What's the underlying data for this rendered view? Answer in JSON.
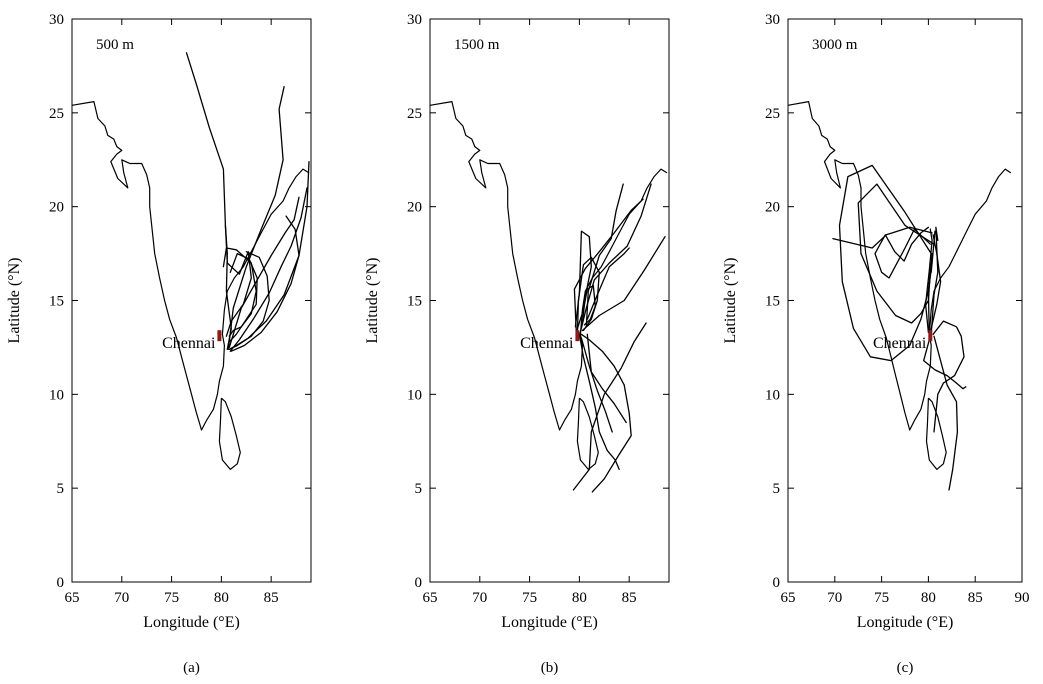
{
  "chart_data": [
    {
      "type": "line",
      "panel": "(a)",
      "annotation": "500 m",
      "xlabel": "Longitude (°E)",
      "ylabel": "Latitude (°N)",
      "xlim": [
        65,
        89
      ],
      "ylim": [
        0,
        30
      ],
      "xticks": [
        65,
        70,
        75,
        80,
        85
      ],
      "yticks": [
        0,
        5,
        10,
        15,
        20,
        25,
        30
      ],
      "site": {
        "name": "Chennai",
        "lon": 79.8,
        "lat": 13.1,
        "color": "#8b1a1a"
      },
      "series": [
        {
          "x": [
            76.5,
            77.5,
            78.8,
            80.2,
            80.4,
            80.6,
            80.5,
            81.0,
            80.6
          ],
          "y": [
            28.2,
            26.5,
            24.2,
            22.0,
            19.0,
            17.5,
            15.5,
            13.5,
            12.4
          ]
        },
        {
          "x": [
            86.3,
            85.8,
            86.2,
            85.4,
            84.0,
            82.5,
            81.2,
            80.7
          ],
          "y": [
            26.4,
            25.2,
            22.5,
            20.6,
            18.8,
            16.8,
            14.6,
            12.4
          ]
        },
        {
          "x": [
            87.8,
            87.3,
            86.4,
            85.0,
            83.5,
            82.0,
            81.2,
            80.8
          ],
          "y": [
            20.5,
            19.3,
            18.6,
            17.4,
            16.0,
            14.6,
            13.2,
            12.5
          ]
        },
        {
          "x": [
            88.6,
            88.0,
            87.0,
            86.0,
            84.8,
            83.2,
            81.8,
            80.9
          ],
          "y": [
            21.0,
            19.4,
            17.9,
            16.8,
            15.4,
            14.0,
            12.9,
            12.3
          ]
        },
        {
          "x": [
            88.8,
            88.6,
            87.8,
            86.3,
            84.5,
            82.7,
            81.5,
            80.8
          ],
          "y": [
            22.4,
            20.0,
            17.4,
            15.3,
            13.9,
            13.0,
            12.6,
            12.4
          ]
        },
        {
          "x": [
            82.5,
            83.8,
            84.6,
            84.8,
            84.2,
            83.0,
            81.6,
            80.8
          ],
          "y": [
            17.6,
            17.3,
            16.3,
            15.0,
            13.9,
            13.1,
            12.6,
            12.4
          ]
        },
        {
          "x": [
            80.4,
            80.6,
            81.8,
            82.7,
            83.0,
            82.2,
            81.0,
            80.5
          ],
          "y": [
            19.0,
            17.0,
            16.4,
            17.6,
            16.2,
            14.8,
            13.9,
            13.1
          ]
        },
        {
          "x": [
            80.2,
            80.5,
            81.5,
            83.0,
            83.5,
            83.0,
            82.0,
            81.2,
            80.8
          ],
          "y": [
            16.8,
            17.8,
            17.7,
            17.0,
            15.5,
            14.3,
            13.6,
            13.4,
            13.1
          ]
        },
        {
          "x": [
            80.9,
            81.6,
            82.8,
            83.6,
            83.5,
            82.5,
            81.5,
            80.8
          ],
          "y": [
            16.5,
            17.5,
            17.2,
            16.2,
            14.8,
            14.0,
            13.2,
            12.8
          ]
        },
        {
          "x": [
            86.5,
            87.4,
            87.8,
            87.0,
            85.6,
            84.0,
            82.3,
            81.0
          ],
          "y": [
            19.5,
            18.8,
            17.4,
            15.9,
            14.4,
            13.3,
            12.6,
            12.3
          ]
        }
      ]
    },
    {
      "type": "line",
      "panel": "(b)",
      "annotation": "1500 m",
      "xlabel": "Longitude (°E)",
      "ylabel": "Latitude (°N)",
      "xlim": [
        65,
        89
      ],
      "ylim": [
        0,
        30
      ],
      "xticks": [
        65,
        70,
        75,
        80,
        85
      ],
      "yticks": [
        0,
        5,
        10,
        15,
        20,
        25,
        30
      ],
      "site": {
        "name": "Chennai",
        "lon": 79.8,
        "lat": 13.1,
        "color": "#8b1a1a"
      },
      "series": [
        {
          "x": [
            79.4,
            81.0,
            81.2,
            82.5,
            84.2,
            85.5,
            86.7
          ],
          "y": [
            4.9,
            6.0,
            8.0,
            10.0,
            11.4,
            12.8,
            13.8
          ]
        },
        {
          "x": [
            81.3,
            82.5,
            84.0,
            85.2,
            85.0,
            84.5
          ],
          "y": [
            4.8,
            5.5,
            6.8,
            7.8,
            9.0,
            10.5
          ]
        },
        {
          "x": [
            84.5,
            83.5,
            82.3,
            81.0,
            80.2
          ],
          "y": [
            10.5,
            11.5,
            12.3,
            12.9,
            13.2
          ]
        },
        {
          "x": [
            80.0,
            80.4,
            81.0,
            81.6,
            82.0,
            82.8,
            83.6,
            84.0
          ],
          "y": [
            13.2,
            12.0,
            10.7,
            9.3,
            8.0,
            7.0,
            6.5,
            6.0
          ]
        },
        {
          "x": [
            80.2,
            81.0,
            81.8,
            82.6,
            83.3
          ],
          "y": [
            13.0,
            11.5,
            10.2,
            9.1,
            8.0
          ]
        },
        {
          "x": [
            80.8,
            81.2,
            82.3,
            83.5,
            84.7
          ],
          "y": [
            13.2,
            11.2,
            10.3,
            9.5,
            8.5
          ]
        },
        {
          "x": [
            80.3,
            82.0,
            84.5,
            86.5,
            88.6
          ],
          "y": [
            13.4,
            14.2,
            15.0,
            16.6,
            18.4
          ]
        },
        {
          "x": [
            80.8,
            81.8,
            83.0,
            84.5,
            85.0
          ],
          "y": [
            14.0,
            15.3,
            16.8,
            17.5,
            17.8
          ]
        },
        {
          "x": [
            79.7,
            79.5,
            80.6,
            82.0,
            83.5,
            85.2,
            86.4
          ],
          "y": [
            13.2,
            15.6,
            16.7,
            17.6,
            18.6,
            19.8,
            20.4
          ]
        },
        {
          "x": [
            80.0,
            80.7,
            81.5,
            83.0,
            84.8,
            86.2,
            87.2
          ],
          "y": [
            13.1,
            14.6,
            16.1,
            17.0,
            17.9,
            19.5,
            21.2
          ]
        },
        {
          "x": [
            79.8,
            79.9,
            80.4,
            81.2,
            82.0,
            81.8,
            81.2,
            80.4
          ],
          "y": [
            13.2,
            15.0,
            16.9,
            17.3,
            16.5,
            15.0,
            14.0,
            13.4
          ]
        },
        {
          "x": [
            79.6,
            80.0,
            80.2,
            81.0,
            81.2,
            80.6,
            80.3
          ],
          "y": [
            13.6,
            15.4,
            18.7,
            18.4,
            16.8,
            15.2,
            13.8
          ]
        },
        {
          "x": [
            80.7,
            80.9,
            82.0,
            83.2,
            83.7,
            84.4
          ],
          "y": [
            13.6,
            15.5,
            17.4,
            18.3,
            19.8,
            21.2
          ]
        },
        {
          "x": [
            79.8,
            80.4,
            80.8,
            81.4,
            81.6,
            81.1,
            80.5
          ],
          "y": [
            13.5,
            14.5,
            15.6,
            15.8,
            14.7,
            14.0,
            13.7
          ]
        }
      ]
    },
    {
      "type": "line",
      "panel": "(c)",
      "annotation": "3000 m",
      "xlabel": "Longitude (°E)",
      "ylabel": "Latitude (°N)",
      "xlim": [
        65,
        90
      ],
      "ylim": [
        0,
        30
      ],
      "xticks": [
        65,
        70,
        75,
        80,
        85,
        90
      ],
      "yticks": [
        0,
        5,
        10,
        15,
        20,
        25,
        30
      ],
      "site": {
        "name": "Chennai",
        "lon": 80.2,
        "lat": 13.1,
        "color": "#8b1a1a"
      },
      "series": [
        {
          "x": [
            80.3,
            77.5,
            74.0,
            71.4,
            70.5,
            70.8,
            72.0,
            73.8,
            76.0,
            78.0,
            79.2,
            80.0,
            80.4
          ],
          "y": [
            17.5,
            19.7,
            22.2,
            21.6,
            19.0,
            16.0,
            13.5,
            12.0,
            11.8,
            12.6,
            14.0,
            15.5,
            17.5
          ]
        },
        {
          "x": [
            80.6,
            77.5,
            74.5,
            72.5,
            72.8,
            74.5,
            76.5,
            78.2,
            79.2,
            80.0,
            80.2
          ],
          "y": [
            18.0,
            19.0,
            21.2,
            20.2,
            17.5,
            15.5,
            14.2,
            13.8,
            14.3,
            15.0,
            16.5
          ]
        },
        {
          "x": [
            80.2,
            78.5,
            77.5,
            75.8,
            75.0,
            74.3,
            75.4,
            76.4,
            77.4,
            78.2,
            79.2,
            80.0
          ],
          "y": [
            18.0,
            18.8,
            17.8,
            16.2,
            16.5,
            17.5,
            18.5,
            17.6,
            17.1,
            18.0,
            18.6,
            18.9
          ]
        },
        {
          "x": [
            80.4,
            78.0,
            75.5,
            74.0,
            69.8
          ],
          "y": [
            18.6,
            18.9,
            18.5,
            17.8,
            18.3
          ]
        },
        {
          "x": [
            80.2,
            79.5,
            80.7,
            82.0,
            83.0,
            83.7,
            84.0
          ],
          "y": [
            13.1,
            11.8,
            11.3,
            11.0,
            10.6,
            10.3,
            10.4
          ]
        },
        {
          "x": [
            80.5,
            81.6,
            83.0,
            83.5,
            83.8,
            82.8,
            81.6,
            81.0,
            80.6
          ],
          "y": [
            13.2,
            13.9,
            13.6,
            13.1,
            12.0,
            11.0,
            10.6,
            10.0,
            8.0
          ]
        },
        {
          "x": [
            80.6,
            82.0,
            83.0,
            83.1,
            82.6,
            82.2
          ],
          "y": [
            13.1,
            10.5,
            9.6,
            8.0,
            6.0,
            4.9
          ]
        },
        {
          "x": [
            80.1,
            80.0,
            80.4,
            80.7,
            80.3
          ],
          "y": [
            13.1,
            15.5,
            17.0,
            18.7,
            16.5
          ]
        },
        {
          "x": [
            80.3,
            80.6,
            81.0,
            80.8,
            81.0
          ],
          "y": [
            13.2,
            15.3,
            16.5,
            18.9,
            18.2
          ]
        },
        {
          "x": [
            80.2,
            80.9,
            81.3,
            80.9,
            80.5
          ],
          "y": [
            13.3,
            14.8,
            16.0,
            17.5,
            18.5
          ]
        },
        {
          "x": [
            80.0,
            79.7,
            80.1,
            80.4,
            80.2
          ],
          "y": [
            13.3,
            14.8,
            16.6,
            18.2,
            18.8
          ]
        }
      ]
    }
  ],
  "basemap": {
    "india_coast": {
      "lon": [
        65,
        67.2,
        67.6,
        68.3,
        68.6,
        69.2,
        69.5,
        70.0,
        69.5,
        68.9,
        69.6,
        70.6,
        70.2,
        70.0,
        70.8,
        72.0,
        72.5,
        72.8,
        72.8,
        73.0,
        73.3,
        73.8,
        74.3,
        74.8,
        75.5,
        76.0,
        76.5,
        77.0,
        77.5,
        78.0,
        78.5,
        79.2,
        79.6,
        79.8,
        80.2,
        80.3,
        80.1,
        80.3,
        80.6,
        81.3,
        82.2,
        83.0,
        84.0,
        85.0,
        86.2,
        86.8,
        87.5,
        88.2,
        88.8
      ],
      "lat": [
        25.4,
        25.6,
        24.7,
        24.3,
        23.8,
        23.6,
        23.2,
        23.0,
        22.8,
        22.4,
        21.5,
        21.0,
        21.8,
        22.5,
        22.3,
        22.3,
        21.7,
        21.0,
        20.0,
        19.0,
        17.5,
        16.2,
        15.0,
        14.0,
        13.0,
        12.0,
        11.0,
        10.0,
        9.0,
        8.1,
        8.6,
        9.2,
        10.0,
        10.7,
        11.5,
        12.6,
        13.2,
        14.5,
        15.5,
        16.2,
        16.8,
        17.6,
        18.6,
        19.6,
        20.3,
        21.0,
        21.6,
        22.0,
        21.8
      ]
    },
    "srilanka_coast": {
      "lon": [
        80.0,
        80.4,
        81.0,
        81.5,
        81.9,
        81.6,
        80.9,
        80.1,
        79.8,
        79.9,
        80.0
      ],
      "lat": [
        9.8,
        9.6,
        8.8,
        7.8,
        6.9,
        6.3,
        6.0,
        6.5,
        7.5,
        8.5,
        9.8
      ]
    }
  }
}
